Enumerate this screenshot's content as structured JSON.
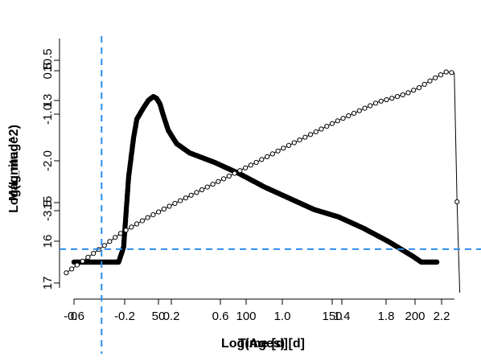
{
  "chart_data": {
    "type": "line",
    "title": "",
    "note": "Two overlaid plots with separate axes drawn on top of each other",
    "xlabel": "Time [d]",
    "xlabel_overlay": "Log(Ages) [d]",
    "ylabel": "Magnitude",
    "ylabel_overlay": "Log(L_mag^2)",
    "x_ticks": [
      "-0.6",
      "-0.2",
      "0.2",
      "0.6",
      "1.0",
      "1.4",
      "1.8",
      "2.2"
    ],
    "x_ticks_overlay": [
      "0",
      "50",
      "100",
      "150",
      "200"
    ],
    "y_ticks": [
      "10.5",
      "13",
      "16",
      "17"
    ],
    "y_ticks_overlay": [
      "-2.0",
      "-3.5",
      "15",
      "0.5",
      "-1.0"
    ],
    "reference_lines": {
      "vertical_x": -0.34,
      "horizontal_y": -3.05,
      "color": "#2b8ef0",
      "style": "dashed"
    },
    "series": [
      {
        "name": "",
        "style": "filled-points",
        "color": "#000000",
        "xlim": [
          0,
          230
        ],
        "ylim": [
          0,
          1.0
        ],
        "x": [
          0,
          27,
          30,
          33,
          36,
          38,
          40,
          42,
          45,
          48,
          50,
          52,
          54,
          57,
          62,
          70,
          85,
          100,
          115,
          130,
          145,
          160,
          175,
          190,
          205,
          210,
          220
        ],
        "y": [
          0.0,
          0.0,
          0.08,
          0.45,
          0.66,
          0.76,
          0.79,
          0.82,
          0.86,
          0.88,
          0.87,
          0.84,
          0.78,
          0.7,
          0.63,
          0.58,
          0.53,
          0.47,
          0.4,
          0.34,
          0.28,
          0.24,
          0.18,
          0.11,
          0.03,
          0.0,
          0.0
        ]
      },
      {
        "name": "",
        "style": "open-circles-line",
        "color": "#000000",
        "xlim": [
          -0.65,
          2.35
        ],
        "ylim": [
          -4.0,
          1.0
        ],
        "x": [
          -0.6,
          -0.34,
          -0.2,
          0.0,
          0.2,
          0.4,
          0.6,
          0.8,
          1.0,
          1.2,
          1.4,
          1.6,
          1.7,
          1.8,
          1.9,
          2.0,
          2.1,
          2.2,
          2.26,
          2.3
        ],
        "y": [
          -3.5,
          -3.02,
          -2.75,
          -2.45,
          -2.18,
          -1.92,
          -1.66,
          -1.4,
          -1.13,
          -0.87,
          -0.61,
          -0.37,
          -0.25,
          -0.18,
          -0.1,
          0.02,
          0.18,
          0.32,
          0.3,
          -4.6
        ]
      }
    ],
    "grid": false,
    "legend": "none"
  }
}
